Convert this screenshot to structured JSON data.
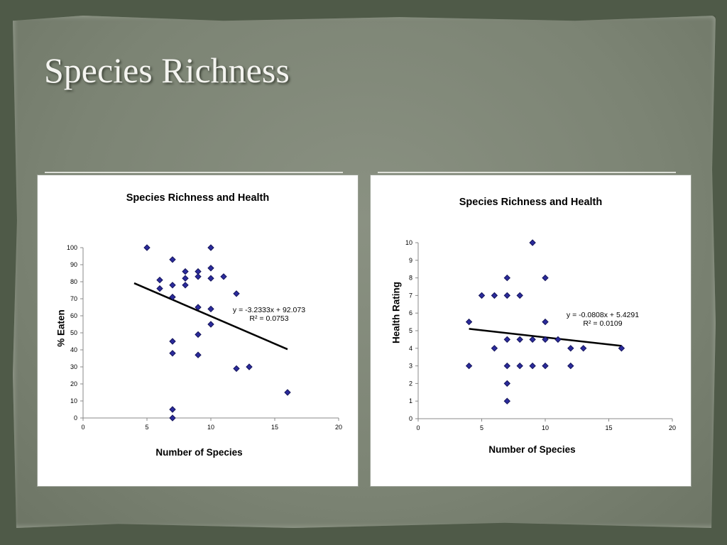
{
  "slide": {
    "title": "Species Richness"
  },
  "colors": {
    "marker": "#2b2b9c",
    "marker_edge": "#14145a",
    "trendline": "#000000"
  },
  "chart_data": [
    {
      "type": "scatter",
      "title": "Species Richness and Health",
      "xlabel": "Number of Species",
      "ylabel": "% Eaten",
      "xlim": [
        0,
        20
      ],
      "ylim": [
        0,
        100
      ],
      "xticks": [
        0,
        5,
        10,
        15,
        20
      ],
      "yticks": [
        0,
        10,
        20,
        30,
        40,
        50,
        60,
        70,
        80,
        90,
        100
      ],
      "points": [
        [
          5,
          100
        ],
        [
          10,
          100
        ],
        [
          7,
          93
        ],
        [
          8,
          86
        ],
        [
          9,
          86
        ],
        [
          10,
          88
        ],
        [
          6,
          81
        ],
        [
          8,
          82
        ],
        [
          9,
          83
        ],
        [
          10,
          82
        ],
        [
          11,
          83
        ],
        [
          7,
          78
        ],
        [
          8,
          78
        ],
        [
          6,
          76
        ],
        [
          7,
          71
        ],
        [
          12,
          73
        ],
        [
          9,
          65
        ],
        [
          10,
          64
        ],
        [
          10,
          55
        ],
        [
          9,
          49
        ],
        [
          7,
          45
        ],
        [
          7,
          38
        ],
        [
          9,
          37
        ],
        [
          12,
          29
        ],
        [
          13,
          30
        ],
        [
          7,
          5
        ],
        [
          7,
          0
        ],
        [
          16,
          15
        ]
      ],
      "trendline": {
        "slope": -3.2333,
        "intercept": 92.073,
        "x_range": [
          4,
          16
        ]
      },
      "equation": "y = -3.2333x + 92.073",
      "r2": "R² = 0.0753"
    },
    {
      "type": "scatter",
      "title": "Species Richness and Health",
      "xlabel": "Number of Species",
      "ylabel": "Health Rating",
      "xlim": [
        0,
        20
      ],
      "ylim": [
        0,
        10
      ],
      "xticks": [
        0,
        5,
        10,
        15,
        20
      ],
      "yticks": [
        0,
        1,
        2,
        3,
        4,
        5,
        6,
        7,
        8,
        9,
        10
      ],
      "points": [
        [
          9,
          10
        ],
        [
          7,
          8
        ],
        [
          10,
          8
        ],
        [
          5,
          7
        ],
        [
          6,
          7
        ],
        [
          7,
          7
        ],
        [
          8,
          7
        ],
        [
          4,
          5.5
        ],
        [
          10,
          5.5
        ],
        [
          7,
          4.5
        ],
        [
          8,
          4.5
        ],
        [
          9,
          4.5
        ],
        [
          10,
          4.5
        ],
        [
          11,
          4.5
        ],
        [
          6,
          4
        ],
        [
          12,
          4
        ],
        [
          13,
          4
        ],
        [
          16,
          4
        ],
        [
          4,
          3
        ],
        [
          7,
          3
        ],
        [
          8,
          3
        ],
        [
          9,
          3
        ],
        [
          10,
          3
        ],
        [
          12,
          3
        ],
        [
          7,
          2
        ],
        [
          7,
          1
        ]
      ],
      "trendline": {
        "slope": -0.0808,
        "intercept": 5.4291,
        "x_range": [
          4,
          16
        ]
      },
      "equation": "y = -0.0808x + 5.4291",
      "r2": "R² = 0.0109"
    }
  ]
}
